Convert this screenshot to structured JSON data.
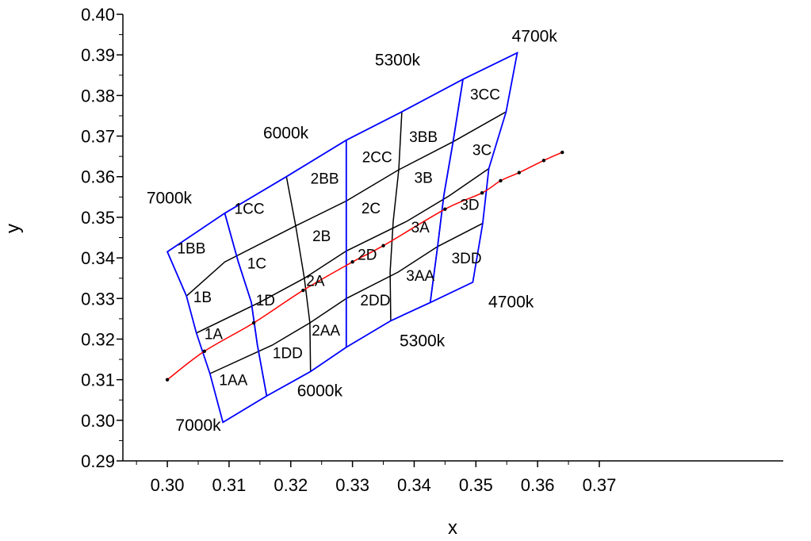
{
  "chart_data": {
    "type": "line",
    "title": "",
    "xlabel": "x",
    "ylabel": "y",
    "xlim": [
      0.295,
      0.37
    ],
    "ylim": [
      0.29,
      0.4
    ],
    "grid": false,
    "x_ticks": [
      "0.30",
      "0.31",
      "0.32",
      "0.33",
      "0.34",
      "0.35",
      "0.36",
      "0.37"
    ],
    "y_ticks": [
      "0.29",
      "0.30",
      "0.31",
      "0.32",
      "0.33",
      "0.34",
      "0.35",
      "0.36",
      "0.37",
      "0.38",
      "0.39",
      "0.40"
    ],
    "colors": {
      "outline": "#0000ff",
      "grid_lines": "#000000",
      "locus": "#ff0000",
      "points": "#000000"
    },
    "series": [
      {
        "color": "#ff0000",
        "points": [
          [
            0.3,
            0.31
          ],
          [
            0.306,
            0.317
          ],
          [
            0.314,
            0.324
          ],
          [
            0.322,
            0.332
          ],
          [
            0.33,
            0.339
          ],
          [
            0.335,
            0.343
          ],
          [
            0.345,
            0.352
          ],
          [
            0.351,
            0.356
          ],
          [
            0.354,
            0.359
          ],
          [
            0.357,
            0.361
          ],
          [
            0.361,
            0.364
          ],
          [
            0.364,
            0.366
          ]
        ]
      }
    ],
    "quadrangles": {
      "outline": [
        [
          0.3,
          0.3415
        ],
        [
          0.3093,
          0.351
        ],
        [
          0.3193,
          0.36
        ],
        [
          0.329,
          0.369
        ],
        [
          0.338,
          0.376
        ],
        [
          0.3479,
          0.384
        ],
        [
          0.3567,
          0.3905
        ],
        [
          0.3549,
          0.376
        ],
        [
          0.3521,
          0.362
        ],
        [
          0.3511,
          0.3485
        ],
        [
          0.3495,
          0.334
        ],
        [
          0.3426,
          0.329
        ],
        [
          0.3362,
          0.3245
        ],
        [
          0.329,
          0.318
        ],
        [
          0.3232,
          0.312
        ],
        [
          0.3161,
          0.306
        ],
        [
          0.309,
          0.2995
        ],
        [
          0.3069,
          0.3115
        ],
        [
          0.3047,
          0.3215
        ],
        [
          0.3031,
          0.3306
        ],
        [
          0.3,
          0.3415
        ]
      ],
      "row_lines": [
        [
          [
            0.3031,
            0.3306
          ],
          [
            0.3093,
            0.339
          ],
          [
            0.3208,
            0.3479
          ],
          [
            0.329,
            0.354
          ],
          [
            0.3375,
            0.3617
          ],
          [
            0.3463,
            0.3686
          ],
          [
            0.3549,
            0.376
          ]
        ],
        [
          [
            0.3047,
            0.3215
          ],
          [
            0.315,
            0.3291
          ],
          [
            0.3222,
            0.335
          ],
          [
            0.329,
            0.3417
          ],
          [
            0.3388,
            0.349
          ],
          [
            0.3457,
            0.3553
          ],
          [
            0.3521,
            0.362
          ]
        ],
        [
          [
            0.3069,
            0.3115
          ],
          [
            0.317,
            0.3185
          ],
          [
            0.3231,
            0.324
          ],
          [
            0.329,
            0.33
          ],
          [
            0.3374,
            0.3365
          ],
          [
            0.3438,
            0.3428
          ],
          [
            0.3511,
            0.3485
          ]
        ]
      ],
      "column_lines": [
        [
          [
            0.3093,
            0.351
          ],
          [
            0.3115,
            0.339
          ],
          [
            0.3136,
            0.3291
          ],
          [
            0.3146,
            0.3185
          ],
          [
            0.3161,
            0.306
          ]
        ],
        [
          [
            0.3193,
            0.36
          ],
          [
            0.3208,
            0.3479
          ],
          [
            0.3222,
            0.335
          ],
          [
            0.3231,
            0.324
          ],
          [
            0.3232,
            0.312
          ]
        ],
        [
          [
            0.329,
            0.369
          ],
          [
            0.329,
            0.354
          ],
          [
            0.329,
            0.3417
          ],
          [
            0.329,
            0.33
          ],
          [
            0.329,
            0.318
          ]
        ],
        [
          [
            0.338,
            0.376
          ],
          [
            0.3375,
            0.3617
          ],
          [
            0.3366,
            0.349
          ],
          [
            0.3361,
            0.3365
          ],
          [
            0.3362,
            0.3245
          ]
        ],
        [
          [
            0.3479,
            0.384
          ],
          [
            0.3463,
            0.3686
          ],
          [
            0.3448,
            0.3553
          ],
          [
            0.3438,
            0.3428
          ],
          [
            0.3426,
            0.329
          ]
        ]
      ]
    },
    "cell_labels": [
      {
        "text": "1BB",
        "x": 0.3039,
        "y": 0.3421
      },
      {
        "text": "1CC",
        "x": 0.3133,
        "y": 0.3518
      },
      {
        "text": "2BB",
        "x": 0.3255,
        "y": 0.3593
      },
      {
        "text": "2CC",
        "x": 0.334,
        "y": 0.3645
      },
      {
        "text": "3BB",
        "x": 0.3415,
        "y": 0.3695
      },
      {
        "text": "3CC",
        "x": 0.3515,
        "y": 0.38
      },
      {
        "text": "1B",
        "x": 0.3057,
        "y": 0.3301
      },
      {
        "text": "1C",
        "x": 0.3145,
        "y": 0.3384
      },
      {
        "text": "2B",
        "x": 0.325,
        "y": 0.3451
      },
      {
        "text": "2C",
        "x": 0.333,
        "y": 0.3519
      },
      {
        "text": "3B",
        "x": 0.3415,
        "y": 0.3595
      },
      {
        "text": "3C",
        "x": 0.351,
        "y": 0.3663
      },
      {
        "text": "1A",
        "x": 0.3075,
        "y": 0.321
      },
      {
        "text": "1D",
        "x": 0.3159,
        "y": 0.3293
      },
      {
        "text": "2A",
        "x": 0.324,
        "y": 0.3341
      },
      {
        "text": "2D",
        "x": 0.3324,
        "y": 0.3405
      },
      {
        "text": "3A",
        "x": 0.341,
        "y": 0.3473
      },
      {
        "text": "3D",
        "x": 0.349,
        "y": 0.3528
      },
      {
        "text": "1AA",
        "x": 0.3107,
        "y": 0.3096
      },
      {
        "text": "1DD",
        "x": 0.3195,
        "y": 0.3163
      },
      {
        "text": "2AA",
        "x": 0.3257,
        "y": 0.3219
      },
      {
        "text": "2DD",
        "x": 0.3337,
        "y": 0.3293
      },
      {
        "text": "3AA",
        "x": 0.341,
        "y": 0.3353
      },
      {
        "text": "3DD",
        "x": 0.3485,
        "y": 0.3396
      }
    ],
    "annotations": [
      {
        "text": "7000k",
        "x": 0.3003,
        "y": 0.3545
      },
      {
        "text": "6000k",
        "x": 0.3192,
        "y": 0.3705
      },
      {
        "text": "5300k",
        "x": 0.3373,
        "y": 0.3885
      },
      {
        "text": "4700k",
        "x": 0.3595,
        "y": 0.3943
      },
      {
        "text": "7000k",
        "x": 0.305,
        "y": 0.2985
      },
      {
        "text": "6000k",
        "x": 0.3247,
        "y": 0.307
      },
      {
        "text": "5300k",
        "x": 0.3413,
        "y": 0.3193
      },
      {
        "text": "4700k",
        "x": 0.3557,
        "y": 0.3289
      }
    ]
  }
}
